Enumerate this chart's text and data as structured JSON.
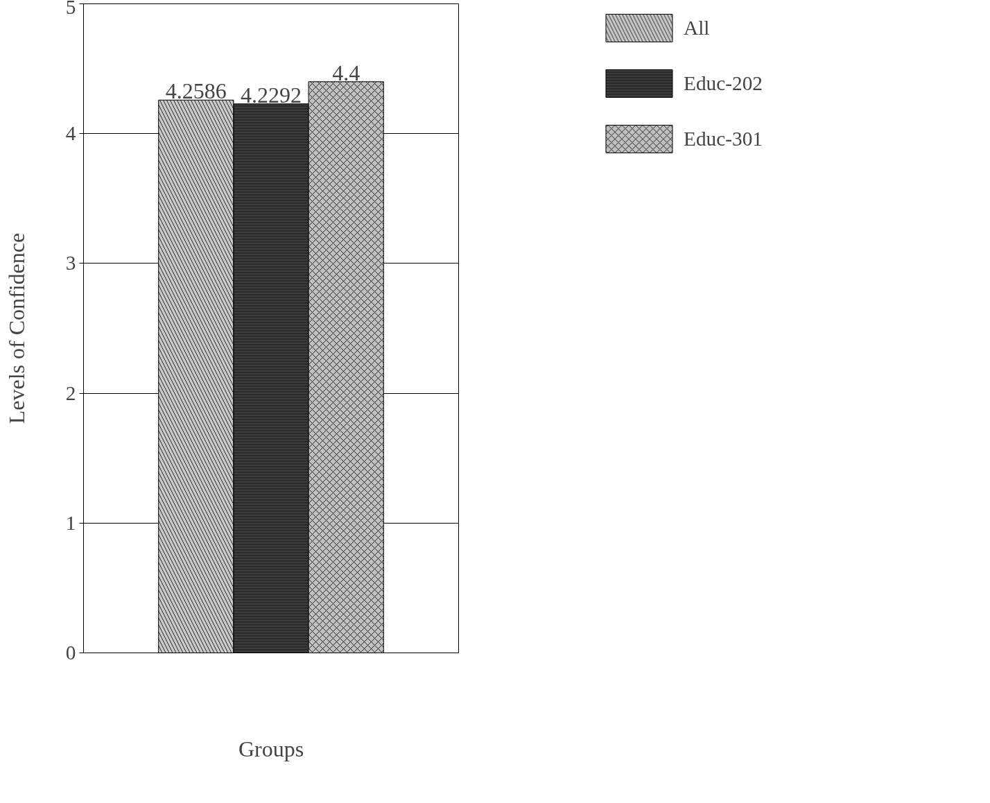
{
  "chart_data": {
    "type": "bar",
    "xlabel": "Groups",
    "ylabel": "Levels of Confidence",
    "categories": [
      null
    ],
    "series": [
      {
        "name": "All",
        "color": "#c8c8c8",
        "values": [
          4.2586
        ]
      },
      {
        "name": "Educ-202",
        "color": "#2a2a2a",
        "values": [
          4.2292
        ]
      },
      {
        "name": "Educ-301",
        "color": "#c0c0c0",
        "values": [
          4.4
        ]
      }
    ],
    "ylim": [
      0,
      5
    ],
    "yticks": [
      0,
      1,
      2,
      3,
      4,
      5
    ],
    "grid": "y",
    "legend": "top right",
    "data_labels": true
  }
}
